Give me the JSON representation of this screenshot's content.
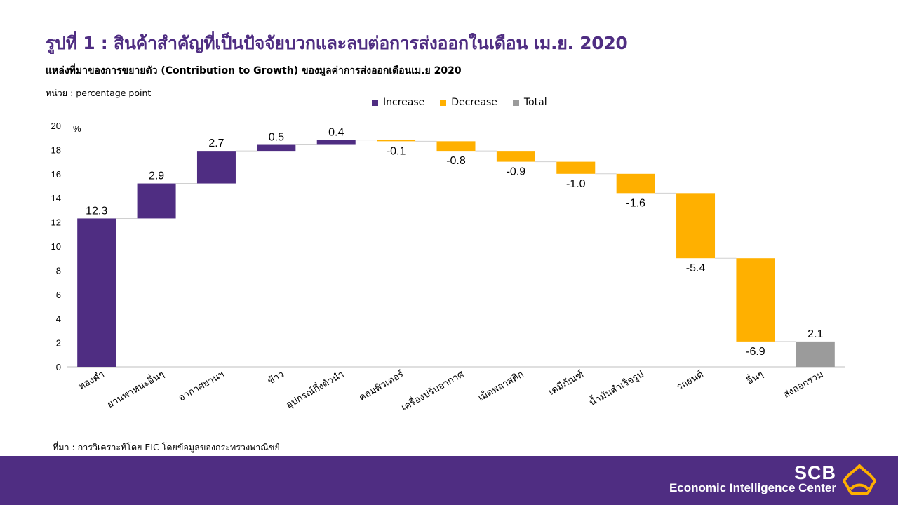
{
  "title": "รูปที่ 1 : สินค้าสำคัญที่เป็นปัจจัยบวกและลบต่อการส่งออกในเดือน เม.ย. 2020",
  "subtitle": "แหล่งที่มาของการขยายตัว (Contribution to Growth) ของมูลค่าการส่งออกเดือนเม.ย 2020",
  "unit_label": "หน่วย : percentage  point",
  "source_note": "ที่มา : การวิเคราะห์โดย  EIC โดยข้อมูลของกระทรวงพาณิชย์",
  "brand": {
    "name": "SCB",
    "tagline": "Economic Intelligence Center"
  },
  "colors": {
    "increase": "#4f2d82",
    "decrease": "#ffb000",
    "total": "#9b9b9b",
    "footer": "#4f2d82"
  },
  "chart_data": {
    "type": "bar",
    "subtype": "waterfall",
    "categories": [
      "ทองคำ",
      "ยานพาหนะอื่นๆ",
      "อากาศยานฯ",
      "ข้าว",
      "อุปกรณ์กึ่งตัวนำ",
      "คอมพิวเตอร์",
      "เครื่องปรับอากาศ",
      "เม็ดพลาสติก",
      "เคมีภัณฑ์",
      "น้ำมันสำเร็จรูป",
      "รถยนต์",
      "อื่นๆ",
      "ส่งออกรวม"
    ],
    "values": [
      12.3,
      2.9,
      2.7,
      0.5,
      0.4,
      -0.1,
      -0.8,
      -0.9,
      -1.0,
      -1.6,
      -5.4,
      -6.9,
      2.1
    ],
    "value_labels": [
      "12.3",
      "2.9",
      "2.7",
      "0.5",
      "0.4",
      "-0.1",
      "-0.8",
      "-0.9",
      "-1.0",
      "-1.6",
      "-5.4",
      "-6.9",
      "2.1"
    ],
    "kinds": [
      "increase",
      "increase",
      "increase",
      "increase",
      "increase",
      "decrease",
      "decrease",
      "decrease",
      "decrease",
      "decrease",
      "decrease",
      "decrease",
      "total"
    ],
    "legend": [
      {
        "key": "increase",
        "label": "Increase"
      },
      {
        "key": "decrease",
        "label": "Decrease"
      },
      {
        "key": "total",
        "label": "Total"
      }
    ],
    "ylabel": "%",
    "ylim": [
      0,
      20
    ],
    "yticks": [
      "0",
      "2",
      "4",
      "6",
      "8",
      "10",
      "12",
      "14",
      "16",
      "18",
      "20"
    ],
    "grid": false,
    "legend_position": "top-center"
  }
}
